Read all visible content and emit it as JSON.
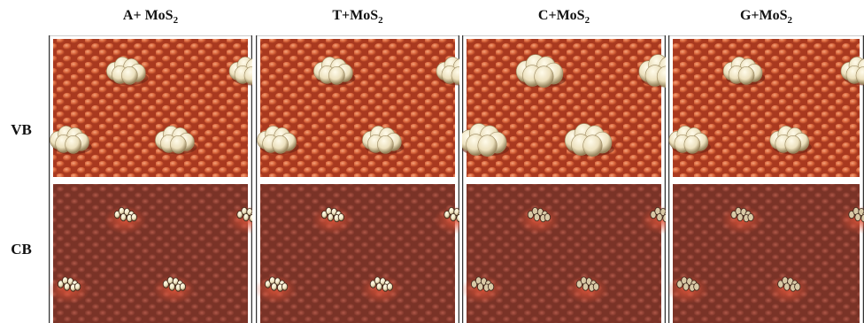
{
  "columns": [
    {
      "label": "A+ MoS",
      "subscript": "2"
    },
    {
      "label": "T+MoS",
      "subscript": "2"
    },
    {
      "label": "C+MoS",
      "subscript": "2"
    },
    {
      "label": "G+MoS",
      "subscript": "2"
    }
  ],
  "rows": [
    "VB",
    "CB"
  ]
}
